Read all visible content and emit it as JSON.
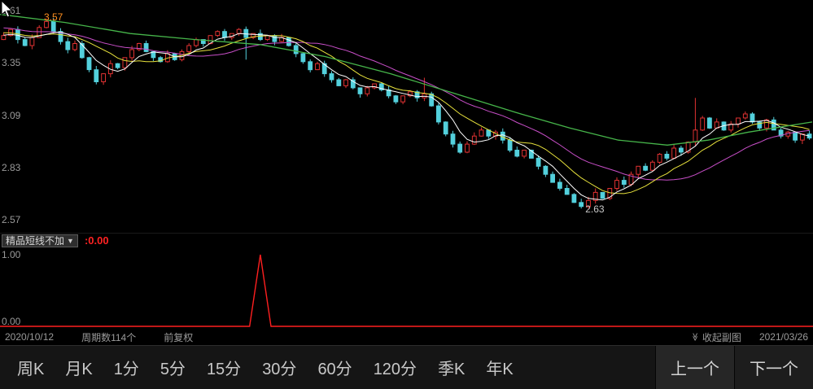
{
  "colors": {
    "background": "#000000",
    "up": "#e03232",
    "down": "#53d0dc",
    "ma5": "#ffffff",
    "ma10": "#e8e23c",
    "ma20": "#c94fc9",
    "ma60": "#46b54a",
    "axis_text": "#9a9a9a",
    "high_label": "#ff8f1f",
    "indicator_line": "#ff1f1f",
    "indicator_value": "#ff2222",
    "low_label_text": "#c8c8c8"
  },
  "main_chart": {
    "high_label": {
      "text": "3.57"
    }
  },
  "chart_data": [
    {
      "type": "candlestick",
      "name": "price-kline",
      "ylim": [
        2.57,
        3.61
      ],
      "y_ticks": [
        {
          "label": "3.61",
          "price": 3.61
        },
        {
          "label": "3.35",
          "price": 3.35
        },
        {
          "label": "3.09",
          "price": 3.09
        },
        {
          "label": "2.83",
          "price": 2.83
        },
        {
          "label": "2.57",
          "price": 2.57
        }
      ],
      "first_open": 3.47,
      "closes": [
        3.49,
        3.52,
        3.47,
        3.44,
        3.48,
        3.53,
        3.56,
        3.51,
        3.46,
        3.42,
        3.45,
        3.38,
        3.32,
        3.26,
        3.3,
        3.35,
        3.33,
        3.38,
        3.42,
        3.45,
        3.41,
        3.38,
        3.36,
        3.4,
        3.37,
        3.41,
        3.44,
        3.47,
        3.45,
        3.49,
        3.51,
        3.48,
        3.5,
        3.52,
        3.48,
        3.5,
        3.47,
        3.49,
        3.46,
        3.48,
        3.44,
        3.4,
        3.36,
        3.32,
        3.35,
        3.3,
        3.27,
        3.24,
        3.27,
        3.23,
        3.2,
        3.23,
        3.25,
        3.22,
        3.19,
        3.16,
        3.19,
        3.21,
        3.18,
        3.2,
        3.14,
        3.06,
        3.0,
        2.95,
        2.91,
        2.95,
        2.99,
        3.02,
        2.99,
        3.01,
        2.97,
        2.92,
        2.89,
        2.92,
        2.88,
        2.84,
        2.8,
        2.76,
        2.73,
        2.7,
        2.66,
        2.64,
        2.67,
        2.71,
        2.68,
        2.73,
        2.77,
        2.75,
        2.8,
        2.84,
        2.82,
        2.86,
        2.9,
        2.88,
        2.93,
        2.91,
        2.96,
        3.02,
        3.08,
        3.03,
        3.06,
        3.02,
        3.05,
        3.08,
        3.1,
        3.06,
        3.03,
        3.07,
        3.02,
        2.99,
        3.01,
        2.97,
        3.0,
        2.98
      ],
      "wick_overrides": {
        "6": {
          "high": 3.575
        },
        "34": {
          "low": 3.37
        },
        "59": {
          "high": 3.28
        },
        "81": {
          "low": 2.63
        },
        "97": {
          "high": 3.18
        }
      },
      "low_annotation": {
        "text": "2.63",
        "index": 81,
        "price": 2.63
      },
      "ma_seed": [
        3.58,
        3.575,
        3.57,
        3.565,
        3.56,
        3.555,
        3.55,
        3.545,
        3.54,
        3.535,
        3.53,
        3.525,
        3.52,
        3.515,
        3.51,
        3.505,
        3.5,
        3.495,
        3.49,
        3.485
      ],
      "ma_windows": {
        "ma5": 5,
        "ma10": 10,
        "ma20": 20
      },
      "ma60_points": [
        [
          0,
          3.595
        ],
        [
          80,
          3.555
        ],
        [
          160,
          3.5
        ],
        [
          240,
          3.47
        ],
        [
          320,
          3.445
        ],
        [
          400,
          3.385
        ],
        [
          480,
          3.3
        ],
        [
          560,
          3.2
        ],
        [
          640,
          3.1
        ],
        [
          700,
          3.03
        ],
        [
          760,
          2.97
        ],
        [
          820,
          2.945
        ],
        [
          870,
          2.97
        ],
        [
          920,
          3.01
        ],
        [
          998,
          3.06
        ]
      ]
    },
    {
      "type": "line",
      "name": "精品短线不加",
      "ylim": [
        0,
        1
      ],
      "baseline": 0.0,
      "spike": {
        "index": 36,
        "value": 1.0
      },
      "length": 114
    }
  ],
  "sub_panel": {
    "name": "精品短线不加",
    "dropdown_icon": "▼",
    "value_label": ":0.00",
    "y_max": "1.00",
    "y_min": "0.00"
  },
  "status_bar": {
    "date_start": "2020/10/12",
    "period_count": "周期数114个",
    "adjust_mode": "前复权",
    "collapse_icon": "≫",
    "collapse_label": "收起副图",
    "date_end": "2021/03/26"
  },
  "toolbar": {
    "periods": [
      "周K",
      "月K",
      "1分",
      "5分",
      "15分",
      "30分",
      "60分",
      "120分",
      "季K",
      "年K"
    ],
    "prev": "上一个",
    "next": "下一个"
  }
}
